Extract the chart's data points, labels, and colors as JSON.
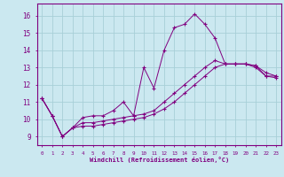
{
  "xlabel": "Windchill (Refroidissement éolien,°C)",
  "bg_color": "#cbe8f0",
  "grid_color": "#a8cfd8",
  "line_color": "#800080",
  "marker": "+",
  "xlim": [
    -0.5,
    23.5
  ],
  "ylim": [
    8.5,
    16.7
  ],
  "xticks": [
    0,
    1,
    2,
    3,
    4,
    5,
    6,
    7,
    8,
    9,
    10,
    11,
    12,
    13,
    14,
    15,
    16,
    17,
    18,
    19,
    20,
    21,
    22,
    23
  ],
  "yticks": [
    9,
    10,
    11,
    12,
    13,
    14,
    15,
    16
  ],
  "series1_x": [
    0,
    1,
    2,
    3,
    4,
    5,
    6,
    7,
    8,
    9,
    10,
    11,
    12,
    13,
    14,
    15,
    16,
    17,
    18,
    19,
    20,
    21,
    22,
    23
  ],
  "series1_y": [
    11.2,
    10.2,
    9.0,
    9.5,
    10.1,
    10.2,
    10.2,
    10.5,
    11.0,
    10.2,
    13.0,
    11.8,
    14.0,
    15.3,
    15.5,
    16.1,
    15.5,
    14.7,
    13.2,
    13.2,
    13.2,
    13.1,
    12.7,
    12.5
  ],
  "series2_x": [
    0,
    1,
    2,
    3,
    4,
    5,
    6,
    7,
    8,
    9,
    10,
    11,
    12,
    13,
    14,
    15,
    16,
    17,
    18,
    19,
    20,
    21,
    22,
    23
  ],
  "series2_y": [
    11.2,
    10.2,
    9.0,
    9.5,
    9.8,
    9.8,
    9.9,
    10.0,
    10.1,
    10.2,
    10.3,
    10.5,
    11.0,
    11.5,
    12.0,
    12.5,
    13.0,
    13.4,
    13.2,
    13.2,
    13.2,
    13.1,
    12.5,
    12.5
  ],
  "series3_x": [
    0,
    1,
    2,
    3,
    4,
    5,
    6,
    7,
    8,
    9,
    10,
    11,
    12,
    13,
    14,
    15,
    16,
    17,
    18,
    19,
    20,
    21,
    22,
    23
  ],
  "series3_y": [
    11.2,
    10.2,
    9.0,
    9.5,
    9.6,
    9.6,
    9.7,
    9.8,
    9.9,
    10.0,
    10.1,
    10.3,
    10.6,
    11.0,
    11.5,
    12.0,
    12.5,
    13.0,
    13.2,
    13.2,
    13.2,
    13.0,
    12.5,
    12.4
  ]
}
